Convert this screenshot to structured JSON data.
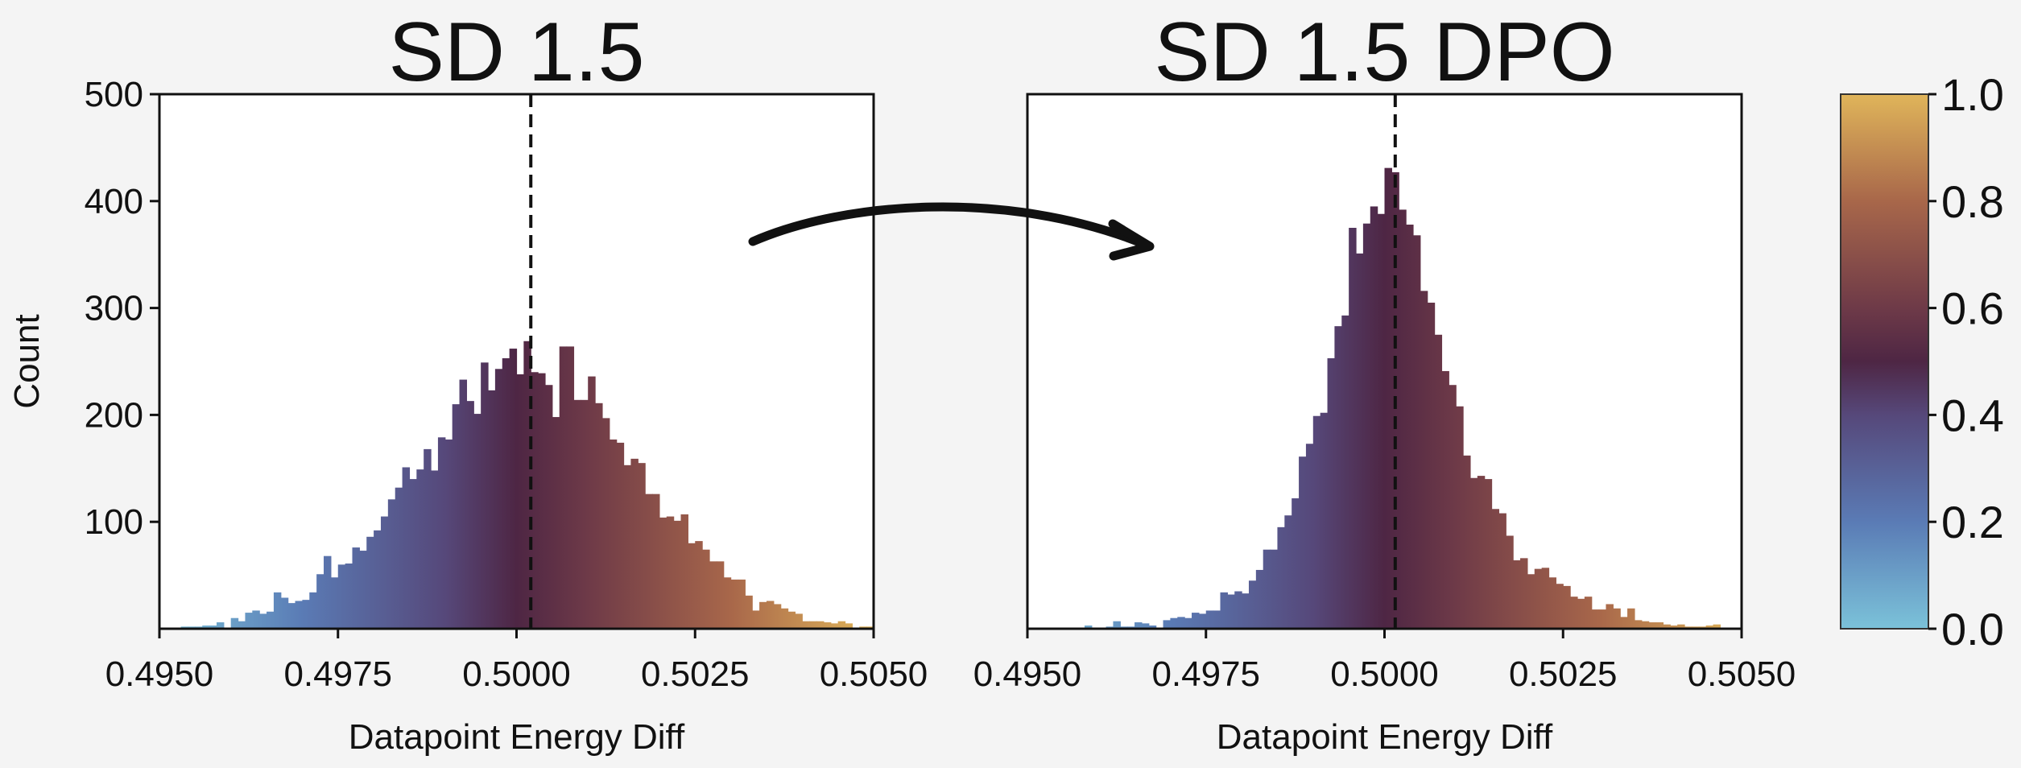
{
  "chart_data": [
    {
      "type": "bar",
      "title": "SD 1.5",
      "xlabel": "Datapoint Energy Diff",
      "ylabel": "Count",
      "xlim": [
        0.495,
        0.505
      ],
      "ylim": [
        0,
        500
      ],
      "xticks": [
        "0.4950",
        "0.4975",
        "0.5000",
        "0.5025",
        "0.5050"
      ],
      "yticks": [
        "100",
        "200",
        "300",
        "400",
        "500"
      ],
      "bin_start": 0.495,
      "bin_width": 0.0001,
      "mean_line": 0.5002,
      "values": [
        0,
        1,
        1,
        2,
        2,
        2,
        3,
        3,
        6,
        1,
        10,
        7,
        15,
        17,
        14,
        16,
        34,
        29,
        24,
        26,
        27,
        34,
        51,
        68,
        48,
        60,
        61,
        76,
        73,
        86,
        92,
        105,
        121,
        132,
        151,
        140,
        149,
        168,
        148,
        179,
        177,
        210,
        233,
        213,
        201,
        249,
        223,
        243,
        253,
        262,
        238,
        269,
        240,
        239,
        228,
        198,
        264,
        264,
        214,
        214,
        236,
        211,
        197,
        177,
        174,
        153,
        159,
        155,
        126,
        126,
        104,
        105,
        101,
        107,
        80,
        82,
        74,
        63,
        63,
        48,
        46,
        46,
        31,
        17,
        25,
        26,
        23,
        19,
        16,
        14,
        7,
        7,
        7,
        6,
        5,
        7,
        5,
        1,
        2,
        2
      ]
    },
    {
      "type": "bar",
      "title": "SD 1.5 DPO",
      "xlabel": "Datapoint Energy Diff",
      "ylabel": "",
      "xlim": [
        0.495,
        0.505
      ],
      "ylim": [
        0,
        500
      ],
      "xticks": [
        "0.4950",
        "0.4975",
        "0.5000",
        "0.5025",
        "0.5050"
      ],
      "yticks": [],
      "bin_start": 0.495,
      "bin_width": 0.0001,
      "mean_line": 0.50015,
      "values": [
        0,
        0,
        0,
        0,
        0,
        0,
        1,
        1,
        3,
        1,
        1,
        2,
        7,
        2,
        2,
        6,
        5,
        3,
        1,
        8,
        10,
        11,
        10,
        15,
        14,
        17,
        17,
        34,
        32,
        35,
        33,
        45,
        55,
        74,
        74,
        95,
        106,
        122,
        161,
        173,
        199,
        202,
        253,
        283,
        293,
        375,
        351,
        379,
        395,
        388,
        431,
        427,
        392,
        378,
        368,
        316,
        305,
        275,
        241,
        228,
        208,
        162,
        141,
        143,
        140,
        112,
        108,
        87,
        64,
        66,
        51,
        56,
        57,
        48,
        42,
        40,
        30,
        28,
        30,
        18,
        18,
        23,
        19,
        11,
        19,
        8,
        7,
        6,
        6,
        4,
        3,
        4,
        2,
        2,
        2,
        3,
        4,
        0,
        0,
        0
      ]
    }
  ],
  "colorbar": {
    "range": [
      0,
      1
    ],
    "ticks": [
      "0.0",
      "0.2",
      "0.4",
      "0.6",
      "0.8",
      "1.0"
    ],
    "colors": [
      "#7bc2d9",
      "#5a7bb5",
      "#56487a",
      "#4e2644",
      "#6e3a48",
      "#a8674a",
      "#e0b55a"
    ],
    "color_stops": [
      0,
      0.2,
      0.4,
      0.5,
      0.6,
      0.8,
      1.0
    ]
  }
}
